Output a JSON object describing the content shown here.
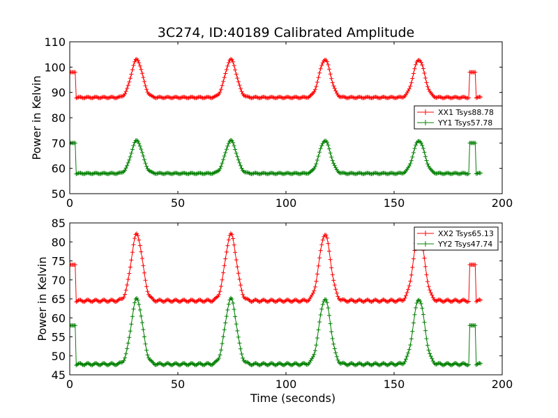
{
  "title": "3C274, ID:40189 Calibrated Amplitude",
  "colors": {
    "red": "#ff0000",
    "green": "#008000"
  },
  "chart_data": [
    {
      "type": "line",
      "ylabel": "Power in Kelvin",
      "xlabel": "",
      "xlim": [
        0,
        200
      ],
      "ylim": [
        50,
        110
      ],
      "xticks": [
        0,
        50,
        100,
        150,
        200
      ],
      "yticks": [
        50,
        60,
        70,
        80,
        90,
        100,
        110
      ],
      "legend_position": "center-right",
      "series": [
        {
          "name": "XX1 Tsys88.78",
          "color": "red",
          "baseline": 88,
          "cal": 98,
          "peak": 103
        },
        {
          "name": "YY1 Tsys57.78",
          "color": "green",
          "baseline": 58,
          "cal": 70,
          "peak": 71
        }
      ]
    },
    {
      "type": "line",
      "ylabel": "Power in Kelvin",
      "xlabel": "Time (seconds)",
      "xlim": [
        0,
        200
      ],
      "ylim": [
        45,
        85
      ],
      "xticks": [
        0,
        50,
        100,
        150,
        200
      ],
      "yticks": [
        45,
        50,
        55,
        60,
        65,
        70,
        75,
        80,
        85
      ],
      "legend_position": "top-right",
      "series": [
        {
          "name": "XX2 Tsys65.13",
          "color": "red",
          "baseline": 64.5,
          "cal": 74,
          "peak": 82
        },
        {
          "name": "YY2 Tsys47.74",
          "color": "green",
          "baseline": 47.8,
          "cal": 58,
          "peak": 65
        }
      ]
    }
  ],
  "signal": {
    "x_max": 190,
    "peak_centers": [
      31,
      74.5,
      118,
      161.5
    ],
    "peak_width": 2.6,
    "cal_windows": [
      [
        0,
        2.5
      ],
      [
        185,
        187.5
      ]
    ]
  }
}
